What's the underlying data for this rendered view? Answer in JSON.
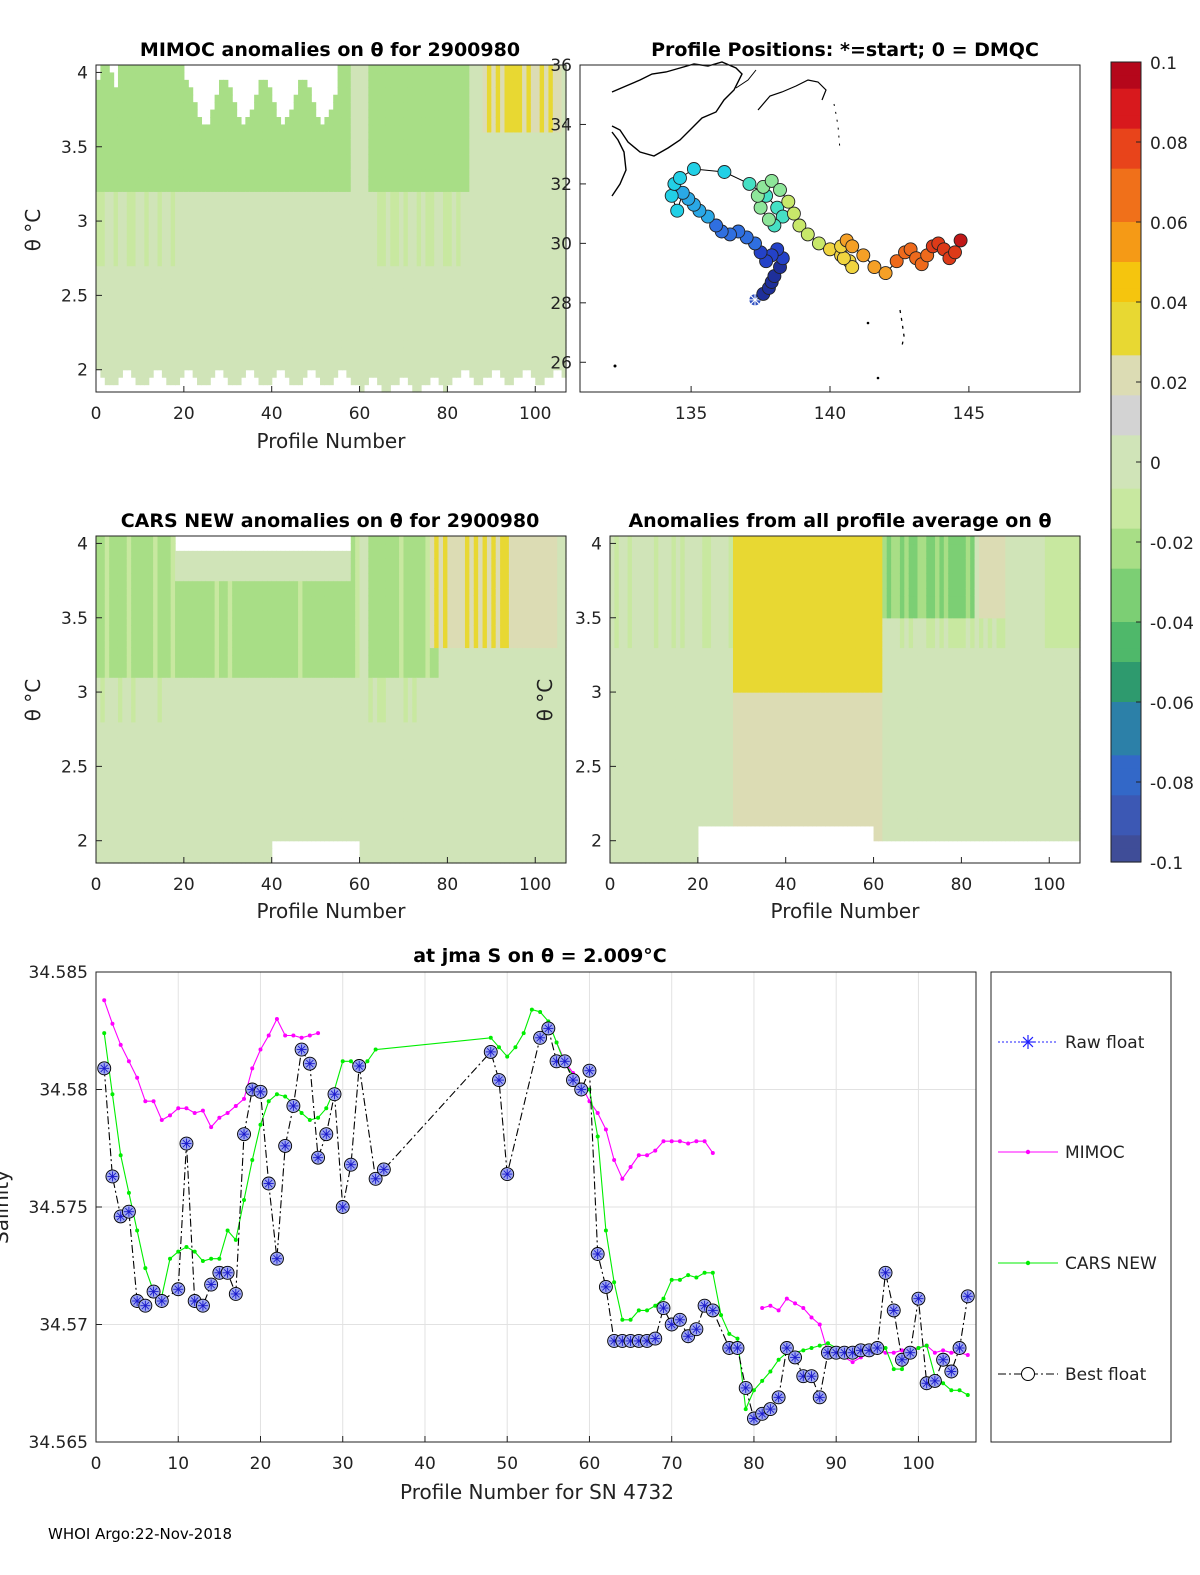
{
  "footer": "WHOI Argo:22-Nov-2018",
  "colorbar": {
    "ticks": [
      "0.1",
      "0.08",
      "0.06",
      "0.04",
      "0.02",
      "0",
      "-0.02",
      "-0.04",
      "-0.06",
      "-0.08",
      "-0.1"
    ],
    "colors": [
      "#b5071b",
      "#d8191d",
      "#e8441b",
      "#f0701a",
      "#f59a16",
      "#f5c50e",
      "#e8d832",
      "#dcdcb4",
      "#d3d3d3",
      "#d0e4b8",
      "#c8e8a0",
      "#a8de86",
      "#7ccf74",
      "#4fb86a",
      "#2e9a6e",
      "#2c80a8",
      "#3368c8",
      "#3c58b4",
      "#3f4d98"
    ]
  },
  "chart_data": [
    {
      "id": "mimoc",
      "type": "heatmap",
      "title": "MIMOC anomalies on θ  for 2900980",
      "xlabel": "Profile Number",
      "ylabel": "θ °C",
      "xlim": [
        0,
        107
      ],
      "ylim": [
        1.85,
        4.05
      ],
      "xticks": [
        "0",
        "20",
        "40",
        "60",
        "80",
        "100"
      ],
      "yticks": [
        "2",
        "2.5",
        "3",
        "3.5",
        "4"
      ],
      "anomaly_pattern": "green (≈-0.02) at upper levels profiles 1-60 and 62-84, yellow (≈+0.03) near θ=3.7-4.0 for profiles 88-105, grey near zero elsewhere"
    },
    {
      "id": "positions",
      "type": "scatter",
      "title": "Profile Positions: *=start; 0 = DMQC",
      "xlabel": "",
      "ylabel": "",
      "xlim": [
        131,
        149
      ],
      "ylim": [
        25,
        36
      ],
      "xticks": [
        "135",
        "140",
        "145"
      ],
      "yticks": [
        "26",
        "28",
        "30",
        "32",
        "34",
        "36"
      ],
      "track": {
        "lon": [
          137.3,
          137.6,
          137.8,
          137.9,
          138.0,
          138.2,
          138.3,
          138.1,
          137.9,
          137.7,
          137.5,
          137.3,
          137.0,
          136.7,
          136.4,
          136.1,
          135.9,
          135.6,
          135.3,
          135.1,
          134.9,
          134.7,
          134.5,
          134.3,
          134.4,
          134.6,
          135.1,
          136.2,
          137.1,
          137.7,
          138.1,
          138.3,
          138.0,
          137.8,
          137.5,
          137.4,
          137.6,
          137.9,
          138.2,
          138.5,
          138.7,
          138.9,
          139.2,
          139.6,
          140.0,
          140.4,
          140.7,
          140.8,
          140.5,
          140.4,
          140.6,
          140.8,
          141.2,
          141.6,
          142.0,
          142.4,
          142.7,
          142.9,
          143.1,
          143.3,
          143.5,
          143.7,
          143.9,
          144.1,
          144.3,
          144.5,
          144.7
        ],
        "lat": [
          28.1,
          28.3,
          28.5,
          28.7,
          28.9,
          29.2,
          29.5,
          29.8,
          29.6,
          29.4,
          29.7,
          30.0,
          30.2,
          30.4,
          30.3,
          30.4,
          30.6,
          30.9,
          31.1,
          31.3,
          31.5,
          31.7,
          31.1,
          31.6,
          32.0,
          32.2,
          32.5,
          32.4,
          32.0,
          31.6,
          31.2,
          30.9,
          30.6,
          30.8,
          31.2,
          31.6,
          31.9,
          32.1,
          31.8,
          31.4,
          31.0,
          30.6,
          30.3,
          30.0,
          29.8,
          29.6,
          29.4,
          29.2,
          29.5,
          29.9,
          30.1,
          29.9,
          29.6,
          29.2,
          29.0,
          29.4,
          29.7,
          29.8,
          29.5,
          29.3,
          29.6,
          29.9,
          30.0,
          29.8,
          29.5,
          29.7,
          30.1
        ]
      }
    },
    {
      "id": "cars",
      "type": "heatmap",
      "title": "CARS NEW anomalies on θ for 2900980",
      "xlabel": "Profile Number",
      "ylabel": "θ °C",
      "xlim": [
        0,
        107
      ],
      "ylim": [
        1.85,
        4.05
      ],
      "xticks": [
        "0",
        "20",
        "40",
        "60",
        "80",
        "100"
      ],
      "yticks": [
        "2",
        "2.5",
        "3",
        "3.5",
        "4"
      ]
    },
    {
      "id": "allavg",
      "type": "heatmap",
      "title": "Anomalies from all profile average on θ",
      "xlabel": "Profile Number",
      "ylabel": "θ °C",
      "xlim": [
        0,
        107
      ],
      "ylim": [
        1.85,
        4.05
      ],
      "xticks": [
        "0",
        "20",
        "40",
        "60",
        "80",
        "100"
      ],
      "yticks": [
        "2",
        "2.5",
        "3",
        "3.5",
        "4"
      ]
    },
    {
      "id": "salinity",
      "type": "line",
      "title": "at jma S on θ = 2.009°C",
      "xlabel": "Profile Number for SN 4732",
      "ylabel": "Salinity",
      "xlim": [
        0,
        107
      ],
      "ylim": [
        34.565,
        34.585
      ],
      "xticks": [
        "0",
        "10",
        "20",
        "30",
        "40",
        "50",
        "60",
        "70",
        "80",
        "90",
        "100"
      ],
      "yticks": [
        "34.565",
        "34.57",
        "34.575",
        "34.58",
        "34.585"
      ],
      "legend": [
        "Raw float",
        "MIMOC",
        "CARS NEW",
        "Best float"
      ],
      "series": [
        {
          "name": "Best float",
          "x": [
            1,
            2,
            3,
            4,
            5,
            6,
            7,
            8,
            10,
            11,
            12,
            13,
            14,
            15,
            16,
            17,
            18,
            19,
            20,
            21,
            22,
            23,
            24,
            25,
            26,
            27,
            28,
            29,
            30,
            31,
            32,
            34,
            35,
            48,
            49,
            50,
            54,
            55,
            56,
            57,
            58,
            59,
            60,
            61,
            62,
            63,
            64,
            65,
            66,
            67,
            68,
            69,
            70,
            71,
            72,
            73,
            74,
            75,
            77,
            78,
            79,
            80,
            81,
            82,
            83,
            84,
            85,
            86,
            87,
            88,
            89,
            90,
            91,
            92,
            93,
            94,
            95,
            96,
            97,
            98,
            99,
            100,
            101,
            102,
            103,
            104,
            105,
            106
          ],
          "y": [
            34.5809,
            34.5763,
            34.5746,
            34.5748,
            34.571,
            34.5708,
            34.5714,
            34.571,
            34.5715,
            34.5777,
            34.571,
            34.5708,
            34.5717,
            34.5722,
            34.5722,
            34.5713,
            34.5781,
            34.58,
            34.5799,
            34.576,
            34.5728,
            34.5776,
            34.5793,
            34.5817,
            34.5811,
            34.5771,
            34.5781,
            34.5798,
            34.575,
            34.5768,
            34.581,
            34.5762,
            34.5766,
            34.5816,
            34.5804,
            34.5764,
            34.5822,
            34.5826,
            34.5812,
            34.5812,
            34.5804,
            34.58,
            34.5808,
            34.573,
            34.5716,
            34.5693,
            34.5693,
            34.5693,
            34.5693,
            34.5693,
            34.5694,
            34.5707,
            34.57,
            34.5702,
            34.5695,
            34.5698,
            34.5708,
            34.5706,
            34.569,
            34.569,
            34.5673,
            34.566,
            34.5662,
            34.5664,
            34.5669,
            34.569,
            34.5686,
            34.5678,
            34.5678,
            34.5669,
            34.5688,
            34.5688,
            34.5688,
            34.5688,
            34.5689,
            34.5689,
            34.569,
            34.5722,
            34.5706,
            34.5685,
            34.5688,
            34.5711,
            34.5675,
            34.5676,
            34.5685,
            34.568,
            34.569,
            34.5712
          ]
        },
        {
          "name": "MIMOC",
          "x": [
            1,
            2,
            3,
            4,
            5,
            6,
            7,
            8,
            9,
            10,
            11,
            12,
            13,
            14,
            15,
            16,
            17,
            18,
            19,
            20,
            21,
            22,
            23,
            24,
            25,
            26,
            27,
            null,
            56,
            57,
            58,
            59,
            60,
            61,
            62,
            63,
            64,
            65,
            66,
            67,
            68,
            69,
            70,
            71,
            72,
            73,
            74,
            75,
            null,
            81,
            82,
            83,
            84,
            85,
            86,
            87,
            88,
            89,
            90,
            91,
            92,
            93,
            94,
            95,
            96,
            97,
            98,
            99,
            100,
            101,
            102,
            103,
            104,
            105,
            106
          ],
          "y": [
            34.5838,
            34.5828,
            34.5819,
            34.5812,
            34.5805,
            34.5795,
            34.5795,
            34.5787,
            34.5789,
            34.5792,
            34.5792,
            34.579,
            34.5791,
            34.5784,
            34.5788,
            34.579,
            34.5793,
            34.5796,
            34.5809,
            34.5817,
            34.5823,
            34.583,
            34.5823,
            34.5823,
            34.5822,
            34.5823,
            34.5824,
            null,
            34.582,
            34.5812,
            34.5807,
            34.5802,
            34.5795,
            34.579,
            34.5783,
            34.577,
            34.5762,
            34.5767,
            34.5772,
            34.5772,
            34.5774,
            34.5778,
            34.5778,
            34.5778,
            34.5777,
            34.5778,
            34.5778,
            34.5773,
            null,
            34.5707,
            34.5708,
            34.5706,
            34.5711,
            34.5709,
            34.5707,
            34.5703,
            34.57,
            34.5688,
            34.5688,
            34.5686,
            34.5684,
            34.5686,
            34.5688,
            34.5689,
            34.5688,
            34.5688,
            34.5689,
            34.569,
            34.569,
            34.5691,
            34.5688,
            34.5689,
            34.5688,
            34.5688,
            34.5687
          ]
        },
        {
          "name": "CARS NEW",
          "x": [
            1,
            2,
            3,
            4,
            5,
            6,
            7,
            8,
            9,
            10,
            11,
            12,
            13,
            14,
            15,
            16,
            17,
            18,
            19,
            20,
            21,
            22,
            23,
            24,
            25,
            26,
            27,
            28,
            29,
            30,
            31,
            32,
            33,
            34,
            48,
            49,
            50,
            51,
            52,
            53,
            54,
            55,
            56,
            57,
            58,
            59,
            60,
            61,
            62,
            63,
            64,
            65,
            66,
            67,
            68,
            69,
            70,
            71,
            72,
            73,
            74,
            75,
            76,
            77,
            78,
            79,
            80,
            81,
            82,
            83,
            84,
            85,
            86,
            87,
            88,
            89,
            90,
            91,
            92,
            93,
            94,
            95,
            96,
            97,
            98,
            99,
            100,
            101,
            102,
            103,
            104,
            105,
            106
          ],
          "y": [
            34.5824,
            34.5798,
            34.5772,
            34.5756,
            34.574,
            34.5724,
            34.5714,
            34.5712,
            34.5728,
            34.5731,
            34.5733,
            34.5731,
            34.5727,
            34.5728,
            34.5728,
            34.574,
            34.5736,
            34.5753,
            34.577,
            34.5785,
            34.5795,
            34.5798,
            34.5797,
            34.5794,
            34.579,
            34.5787,
            34.5788,
            34.5792,
            34.58,
            34.5812,
            34.5812,
            34.5808,
            34.5812,
            34.5817,
            34.5822,
            34.5818,
            34.5814,
            34.5818,
            34.5824,
            34.5834,
            34.5833,
            34.5829,
            34.582,
            34.5811,
            34.5806,
            34.5802,
            34.58,
            34.578,
            34.574,
            34.5718,
            34.5702,
            34.5702,
            34.5706,
            34.5706,
            34.5708,
            34.5711,
            34.5719,
            34.5719,
            34.5721,
            34.572,
            34.5722,
            34.5722,
            34.5704,
            34.5696,
            34.5694,
            34.5664,
            34.5672,
            34.5676,
            34.568,
            34.5685,
            34.5688,
            34.5688,
            34.5689,
            34.569,
            34.5691,
            34.5692,
            34.569,
            34.5687,
            34.5686,
            34.5688,
            34.569,
            34.5692,
            34.569,
            34.5681,
            34.5681,
            34.5688,
            34.569,
            34.5691,
            34.5678,
            34.5675,
            34.5672,
            34.5672,
            34.567
          ]
        }
      ]
    }
  ]
}
